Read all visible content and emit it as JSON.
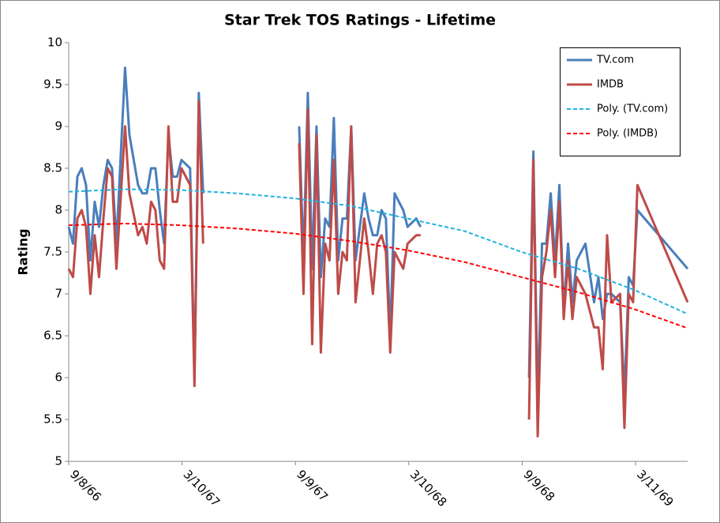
{
  "chart_data": {
    "type": "line",
    "title": "Star Trek TOS Ratings - Lifetime",
    "y_label": "Rating",
    "xlim": [
      "1966-09-08",
      "1969-06-03"
    ],
    "xticks": [
      {
        "value": "1966-09-08",
        "label": "9/8/66"
      },
      {
        "value": "1967-03-10",
        "label": "3/10/67"
      },
      {
        "value": "1967-09-09",
        "label": "9/9/67"
      },
      {
        "value": "1968-03-10",
        "label": "3/10/68"
      },
      {
        "value": "1968-09-09",
        "label": "9/9/68"
      },
      {
        "value": "1969-03-11",
        "label": "3/11/69"
      }
    ],
    "ylim": [
      5,
      10
    ],
    "yticks": [
      5,
      5.5,
      6,
      6.5,
      7,
      7.5,
      8,
      8.5,
      9,
      9.5,
      10
    ],
    "grid": false,
    "legend": "top-right",
    "x": [
      "1966-09-08",
      "1966-09-15",
      "1966-09-22",
      "1966-09-29",
      "1966-10-06",
      "1966-10-13",
      "1966-10-20",
      "1966-10-27",
      "1966-11-03",
      "1966-11-10",
      "1966-11-17",
      "1966-11-24",
      "1966-12-08",
      "1966-12-15",
      "1966-12-29",
      "1967-01-05",
      "1967-01-12",
      "1967-01-19",
      "1967-01-26",
      "1967-02-02",
      "1967-02-09",
      "1967-02-16",
      "1967-02-23",
      "1967-03-02",
      "1967-03-09",
      "1967-03-23",
      "1967-03-30",
      "1967-04-06",
      "1967-04-13",
      "1967-07-01",
      "1967-09-15",
      "1967-09-22",
      "1967-09-29",
      "1967-10-06",
      "1967-10-13",
      "1967-10-20",
      "1967-10-27",
      "1967-11-03",
      "1967-11-10",
      "1967-11-17",
      "1967-11-24",
      "1967-12-01",
      "1967-12-08",
      "1967-12-15",
      "1967-12-29",
      "1968-01-05",
      "1968-01-12",
      "1968-01-19",
      "1968-01-26",
      "1968-02-02",
      "1968-02-09",
      "1968-02-16",
      "1968-03-01",
      "1968-03-08",
      "1968-03-22",
      "1968-03-29",
      "1968-07-01",
      "1968-09-20",
      "1968-09-27",
      "1968-10-04",
      "1968-10-11",
      "1968-10-18",
      "1968-10-25",
      "1968-11-01",
      "1968-11-08",
      "1968-11-15",
      "1968-11-22",
      "1968-11-29",
      "1968-12-06",
      "1968-12-20",
      "1969-01-03",
      "1969-01-10",
      "1969-01-17",
      "1969-01-24",
      "1969-01-31",
      "1969-02-14",
      "1969-02-21",
      "1969-02-28",
      "1969-03-07",
      "1969-03-14",
      "1969-06-03"
    ],
    "series": [
      {
        "name": "TV.com",
        "color": "#4a7ebb",
        "dashed": false,
        "values": [
          7.8,
          7.6,
          8.4,
          8.5,
          8.3,
          7.4,
          8.1,
          7.8,
          8.3,
          8.6,
          8.5,
          7.6,
          9.7,
          8.9,
          8.3,
          8.2,
          8.2,
          8.5,
          8.5,
          8.0,
          7.6,
          8.9,
          8.4,
          8.4,
          8.6,
          8.5,
          6.0,
          9.4,
          8.2,
          null,
          9.0,
          7.4,
          9.4,
          7.3,
          9.0,
          7.2,
          7.9,
          7.8,
          9.1,
          7.4,
          7.9,
          7.9,
          9.0,
          7.4,
          8.2,
          7.9,
          7.7,
          7.7,
          8.0,
          7.9,
          6.5,
          8.2,
          8.0,
          7.8,
          7.9,
          7.8,
          null,
          6.0,
          8.7,
          5.7,
          7.6,
          7.6,
          8.2,
          7.4,
          8.3,
          6.8,
          7.6,
          6.9,
          7.4,
          7.6,
          6.9,
          7.2,
          6.7,
          7.0,
          7.0,
          6.9,
          5.8,
          7.2,
          7.1,
          8.0,
          7.3
        ]
      },
      {
        "name": "IMDB",
        "color": "#be4b48",
        "dashed": false,
        "values": [
          7.3,
          7.2,
          7.9,
          8.0,
          7.8,
          7.0,
          7.7,
          7.2,
          7.9,
          8.5,
          8.4,
          7.3,
          9.0,
          8.2,
          7.7,
          7.8,
          7.6,
          8.1,
          8.0,
          7.4,
          7.3,
          9.0,
          8.1,
          8.1,
          8.5,
          8.3,
          5.9,
          9.3,
          7.6,
          null,
          8.8,
          7.0,
          9.2,
          6.4,
          8.9,
          6.3,
          7.6,
          7.4,
          8.6,
          7.0,
          7.5,
          7.4,
          9.0,
          6.9,
          7.9,
          7.5,
          7.0,
          7.6,
          7.7,
          7.5,
          6.3,
          7.5,
          7.3,
          7.6,
          7.7,
          7.7,
          null,
          5.5,
          8.6,
          5.3,
          7.2,
          7.5,
          8.0,
          7.2,
          8.1,
          6.7,
          7.4,
          6.7,
          7.2,
          7.0,
          6.6,
          6.6,
          6.1,
          7.7,
          6.9,
          7.0,
          5.4,
          7.0,
          6.9,
          8.3,
          6.9
        ]
      },
      {
        "name": "Poly. (TV.com)",
        "color": "#1fb2e0",
        "dashed": true,
        "x": [
          "1966-09-08",
          "1966-12-08",
          "1967-03-08",
          "1967-06-08",
          "1967-09-08",
          "1967-12-08",
          "1968-03-08",
          "1968-06-08",
          "1968-09-08",
          "1968-12-08",
          "1969-03-08",
          "1969-06-03"
        ],
        "values": [
          8.22,
          8.25,
          8.24,
          8.2,
          8.14,
          8.05,
          7.9,
          7.75,
          7.5,
          7.3,
          7.05,
          6.76
        ]
      },
      {
        "name": "Poly. (IMDB)",
        "color": "#ff0000",
        "dashed": true,
        "x": [
          "1966-09-08",
          "1966-12-08",
          "1967-03-08",
          "1967-06-08",
          "1967-09-08",
          "1967-12-08",
          "1968-03-08",
          "1968-06-08",
          "1968-09-08",
          "1968-12-08",
          "1969-03-08",
          "1969-06-03"
        ],
        "values": [
          7.82,
          7.84,
          7.82,
          7.78,
          7.72,
          7.63,
          7.52,
          7.38,
          7.2,
          7.02,
          6.82,
          6.59
        ]
      }
    ]
  }
}
